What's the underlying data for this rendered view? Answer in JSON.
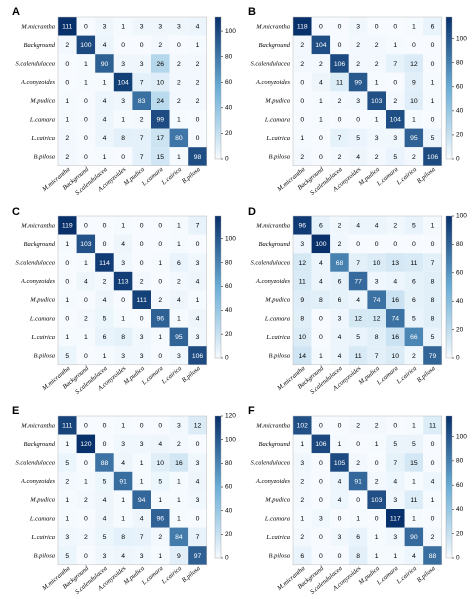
{
  "chart_data": [
    {
      "type": "heatmap",
      "panel_label": "A",
      "categories": [
        "M.micrantha",
        "Background",
        "S.calendulacea",
        "A.conyzoides",
        "M.pudica",
        "L.camara",
        "L.cairica",
        "B.pilosa"
      ],
      "values": [
        [
          111,
          0,
          3,
          1,
          3,
          3,
          3,
          4
        ],
        [
          2,
          100,
          4,
          0,
          0,
          2,
          0,
          1
        ],
        [
          0,
          1,
          90,
          3,
          3,
          26,
          2,
          2
        ],
        [
          0,
          1,
          1,
          104,
          7,
          10,
          2,
          2
        ],
        [
          1,
          0,
          4,
          3,
          83,
          24,
          2,
          2
        ],
        [
          1,
          0,
          4,
          1,
          2,
          99,
          1,
          0
        ],
        [
          2,
          0,
          4,
          8,
          7,
          17,
          80,
          0
        ],
        [
          2,
          0,
          1,
          0,
          7,
          15,
          1,
          98
        ]
      ],
      "colorbar_ticks": [
        0,
        20,
        40,
        60,
        80,
        100
      ],
      "vmax": 111
    },
    {
      "type": "heatmap",
      "panel_label": "B",
      "categories": [
        "M.micrantha",
        "Background",
        "S.calendulacea",
        "A.conyzoides",
        "M.pudica",
        "L.camara",
        "L.cairica",
        "B.pilosa"
      ],
      "values": [
        [
          118,
          0,
          0,
          3,
          0,
          0,
          1,
          6
        ],
        [
          2,
          104,
          0,
          2,
          2,
          1,
          0,
          0
        ],
        [
          2,
          2,
          106,
          2,
          2,
          7,
          12,
          0
        ],
        [
          0,
          4,
          11,
          99,
          1,
          0,
          9,
          1
        ],
        [
          0,
          1,
          2,
          3,
          103,
          2,
          10,
          1
        ],
        [
          0,
          1,
          0,
          0,
          1,
          104,
          1,
          0
        ],
        [
          1,
          0,
          7,
          5,
          3,
          3,
          95,
          5
        ],
        [
          2,
          0,
          2,
          4,
          2,
          5,
          2,
          106
        ]
      ],
      "colorbar_ticks": [
        0,
        20,
        40,
        60,
        80,
        100
      ],
      "vmax": 118
    },
    {
      "type": "heatmap",
      "panel_label": "C",
      "categories": [
        "M.micrantha",
        "Background",
        "S.calendulacea",
        "A.conyzoides",
        "M.pudica",
        "L.camara",
        "L.cairica",
        "B.pilosa"
      ],
      "values": [
        [
          119,
          0,
          0,
          1,
          0,
          0,
          1,
          7
        ],
        [
          1,
          103,
          0,
          4,
          0,
          0,
          1,
          0
        ],
        [
          0,
          1,
          114,
          3,
          0,
          1,
          6,
          3
        ],
        [
          0,
          4,
          2,
          113,
          2,
          0,
          2,
          4
        ],
        [
          1,
          0,
          4,
          0,
          111,
          2,
          4,
          1
        ],
        [
          0,
          2,
          5,
          1,
          0,
          96,
          1,
          4
        ],
        [
          1,
          1,
          6,
          8,
          3,
          1,
          95,
          3
        ],
        [
          5,
          0,
          1,
          3,
          3,
          0,
          3,
          106
        ]
      ],
      "colorbar_ticks": [
        0,
        20,
        40,
        60,
        80,
        100
      ],
      "vmax": 119
    },
    {
      "type": "heatmap",
      "panel_label": "D",
      "categories": [
        "M.micrantha",
        "Background",
        "S.calendulacea",
        "A.conyzoides",
        "M.pudica",
        "L.camara",
        "L.cairica",
        "B.pilosa"
      ],
      "values": [
        [
          96,
          6,
          2,
          4,
          4,
          2,
          5,
          1
        ],
        [
          3,
          100,
          2,
          0,
          0,
          0,
          0,
          0
        ],
        [
          12,
          4,
          68,
          7,
          10,
          13,
          11,
          7
        ],
        [
          11,
          4,
          6,
          77,
          3,
          4,
          6,
          8
        ],
        [
          9,
          8,
          6,
          4,
          74,
          16,
          6,
          8
        ],
        [
          8,
          0,
          3,
          12,
          12,
          74,
          5,
          8
        ],
        [
          10,
          0,
          4,
          5,
          8,
          16,
          66,
          5
        ],
        [
          14,
          1,
          4,
          11,
          7,
          10,
          2,
          79
        ]
      ],
      "colorbar_ticks": [
        0,
        20,
        40,
        60,
        80,
        100
      ],
      "vmax": 100
    },
    {
      "type": "heatmap",
      "panel_label": "E",
      "categories": [
        "M.micrantha",
        "Background",
        "S.calendulacea",
        "A.conyzoides",
        "M.pudica",
        "L.camara",
        "L.cairica",
        "B.pilosa"
      ],
      "values": [
        [
          111,
          0,
          0,
          1,
          0,
          0,
          3,
          12
        ],
        [
          1,
          120,
          0,
          3,
          3,
          4,
          2,
          0
        ],
        [
          5,
          0,
          88,
          4,
          1,
          10,
          16,
          3
        ],
        [
          2,
          1,
          5,
          91,
          1,
          5,
          1,
          4
        ],
        [
          1,
          2,
          4,
          1,
          94,
          1,
          1,
          3
        ],
        [
          1,
          0,
          4,
          1,
          4,
          96,
          1,
          0
        ],
        [
          3,
          2,
          5,
          8,
          7,
          2,
          84,
          7
        ],
        [
          5,
          0,
          3,
          4,
          3,
          1,
          9,
          97
        ]
      ],
      "colorbar_ticks": [
        0,
        20,
        40,
        60,
        80,
        100,
        120
      ],
      "vmax": 120
    },
    {
      "type": "heatmap",
      "panel_label": "F",
      "categories": [
        "M.micrantha",
        "Background",
        "S.calendulacea",
        "A.conyzoides",
        "M.pudica",
        "L.camara",
        "L.cairica",
        "B.pilosa"
      ],
      "values": [
        [
          102,
          0,
          0,
          2,
          2,
          0,
          1,
          11
        ],
        [
          1,
          106,
          1,
          0,
          1,
          5,
          5,
          0
        ],
        [
          3,
          0,
          105,
          2,
          0,
          7,
          15,
          0
        ],
        [
          2,
          0,
          4,
          91,
          2,
          4,
          1,
          4
        ],
        [
          2,
          0,
          4,
          0,
          103,
          3,
          11,
          1
        ],
        [
          1,
          3,
          0,
          1,
          0,
          117,
          1,
          0
        ],
        [
          2,
          0,
          3,
          6,
          1,
          3,
          90,
          2
        ],
        [
          6,
          0,
          0,
          8,
          1,
          1,
          4,
          88
        ]
      ],
      "colorbar_ticks": [
        0,
        20,
        40,
        60,
        80,
        100
      ],
      "vmax": 117
    }
  ],
  "colors": {
    "low": "#f7fbff",
    "mid": "#6baed6",
    "high": "#08306b"
  }
}
